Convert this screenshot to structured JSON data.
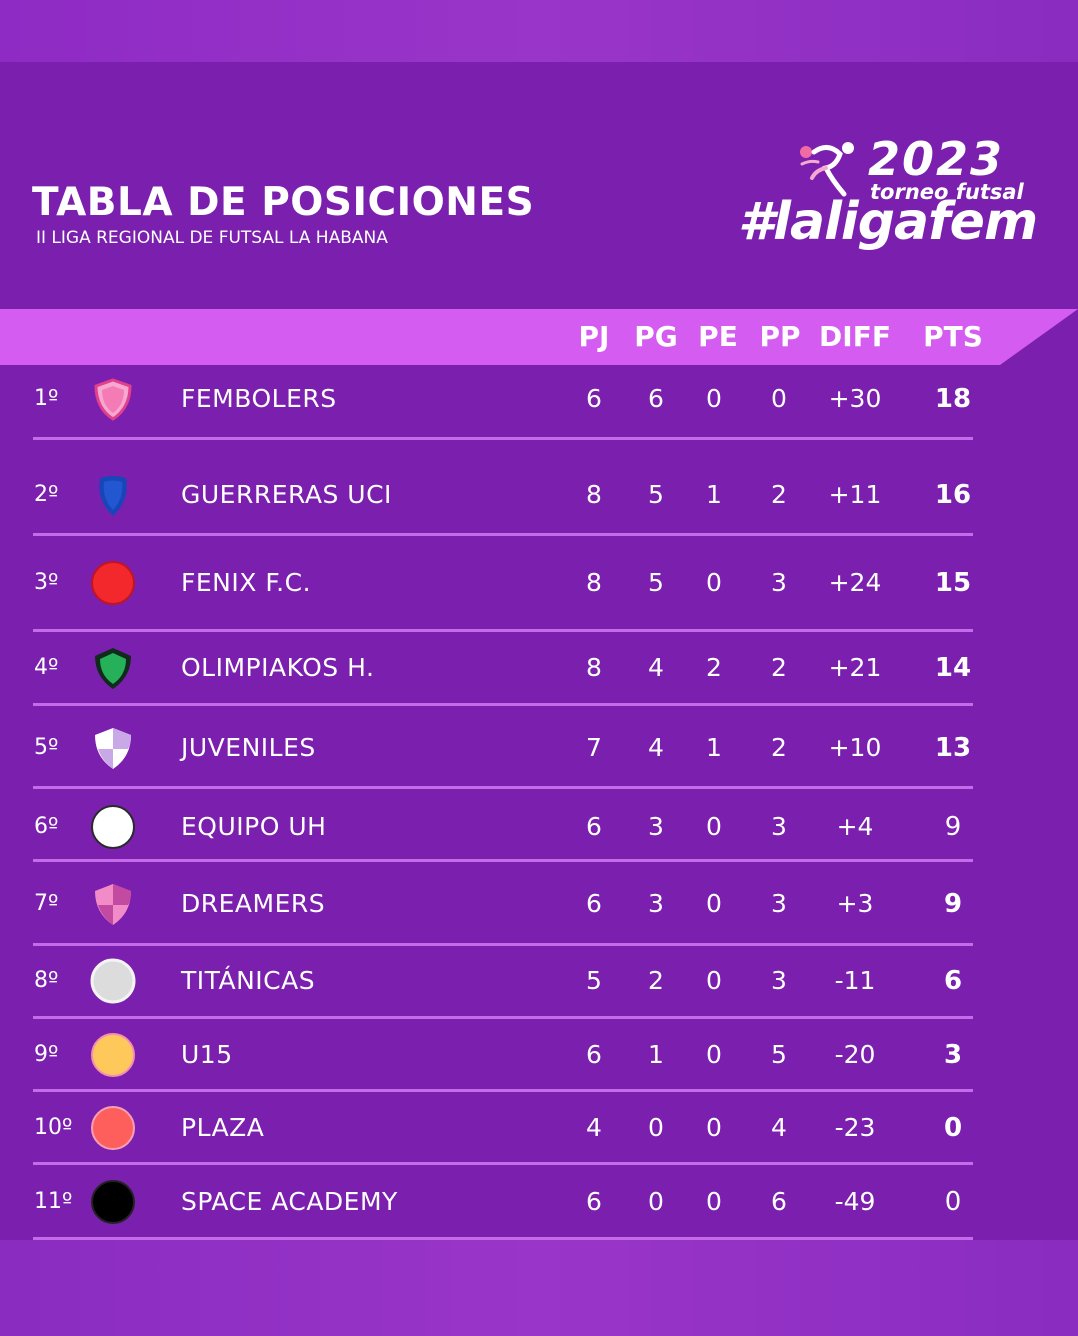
{
  "title": "TABLA DE POSICIONES",
  "subtitle": "II LIGA REGIONAL DE FUTSAL LA HABANA",
  "logo": {
    "year": "2023",
    "tagline": "torneo futsal",
    "hashtag": "#laligafem"
  },
  "columns": {
    "pj": "PJ",
    "pg": "PG",
    "pe": "PE",
    "pp": "PP",
    "diff": "DIFF",
    "pts": "PTS"
  },
  "colors": {
    "background": "#7b1fae",
    "header_band": "#d45cf0",
    "divider": "#c56ae8"
  },
  "standings": [
    {
      "pos": "1º",
      "team": "FEMBOLERS",
      "crest": "pink-shield-crest",
      "pj": "6",
      "pg": "6",
      "pe": "0",
      "pp": "0",
      "diff": "+30",
      "pts": "18"
    },
    {
      "pos": "2º",
      "team": "GUERRERAS UCI",
      "crest": "blue-shield-crest",
      "pj": "8",
      "pg": "5",
      "pe": "1",
      "pp": "2",
      "diff": "+11",
      "pts": "16"
    },
    {
      "pos": "3º",
      "team": "FENIX F.C.",
      "crest": "red-circle-crest",
      "pj": "8",
      "pg": "5",
      "pe": "0",
      "pp": "3",
      "diff": "+24",
      "pts": "15"
    },
    {
      "pos": "4º",
      "team": "OLIMPIAKOS H.",
      "crest": "green-shield-crest",
      "pj": "8",
      "pg": "4",
      "pe": "2",
      "pp": "2",
      "diff": "+21",
      "pts": "14"
    },
    {
      "pos": "5º",
      "team": "JUVENILES",
      "crest": "white-lilac-shield-crest",
      "pj": "7",
      "pg": "4",
      "pe": "1",
      "pp": "2",
      "diff": "+10",
      "pts": "13"
    },
    {
      "pos": "6º",
      "team": "EQUIPO UH",
      "crest": "white-circle-crest",
      "pj": "6",
      "pg": "3",
      "pe": "0",
      "pp": "3",
      "diff": "+4",
      "pts": "9"
    },
    {
      "pos": "7º",
      "team": "DREAMERS",
      "crest": "pink-checkered-shield-crest",
      "pj": "6",
      "pg": "3",
      "pe": "0",
      "pp": "3",
      "diff": "+3",
      "pts": "9"
    },
    {
      "pos": "8º",
      "team": "TITÁNICAS",
      "crest": "grey-circle-crest",
      "pj": "5",
      "pg": "2",
      "pe": "0",
      "pp": "3",
      "diff": "-11",
      "pts": "6"
    },
    {
      "pos": "9º",
      "team": "U15",
      "crest": "yellow-circle-crest",
      "pj": "6",
      "pg": "1",
      "pe": "0",
      "pp": "5",
      "diff": "-20",
      "pts": "3"
    },
    {
      "pos": "10º",
      "team": "PLAZA",
      "crest": "coral-circle-crest",
      "pj": "4",
      "pg": "0",
      "pe": "0",
      "pp": "4",
      "diff": "-23",
      "pts": "0"
    },
    {
      "pos": "11º",
      "team": "SPACE ACADEMY",
      "crest": "black-circle-crest",
      "pj": "6",
      "pg": "0",
      "pe": "0",
      "pp": "6",
      "diff": "-49",
      "pts": "0"
    }
  ]
}
